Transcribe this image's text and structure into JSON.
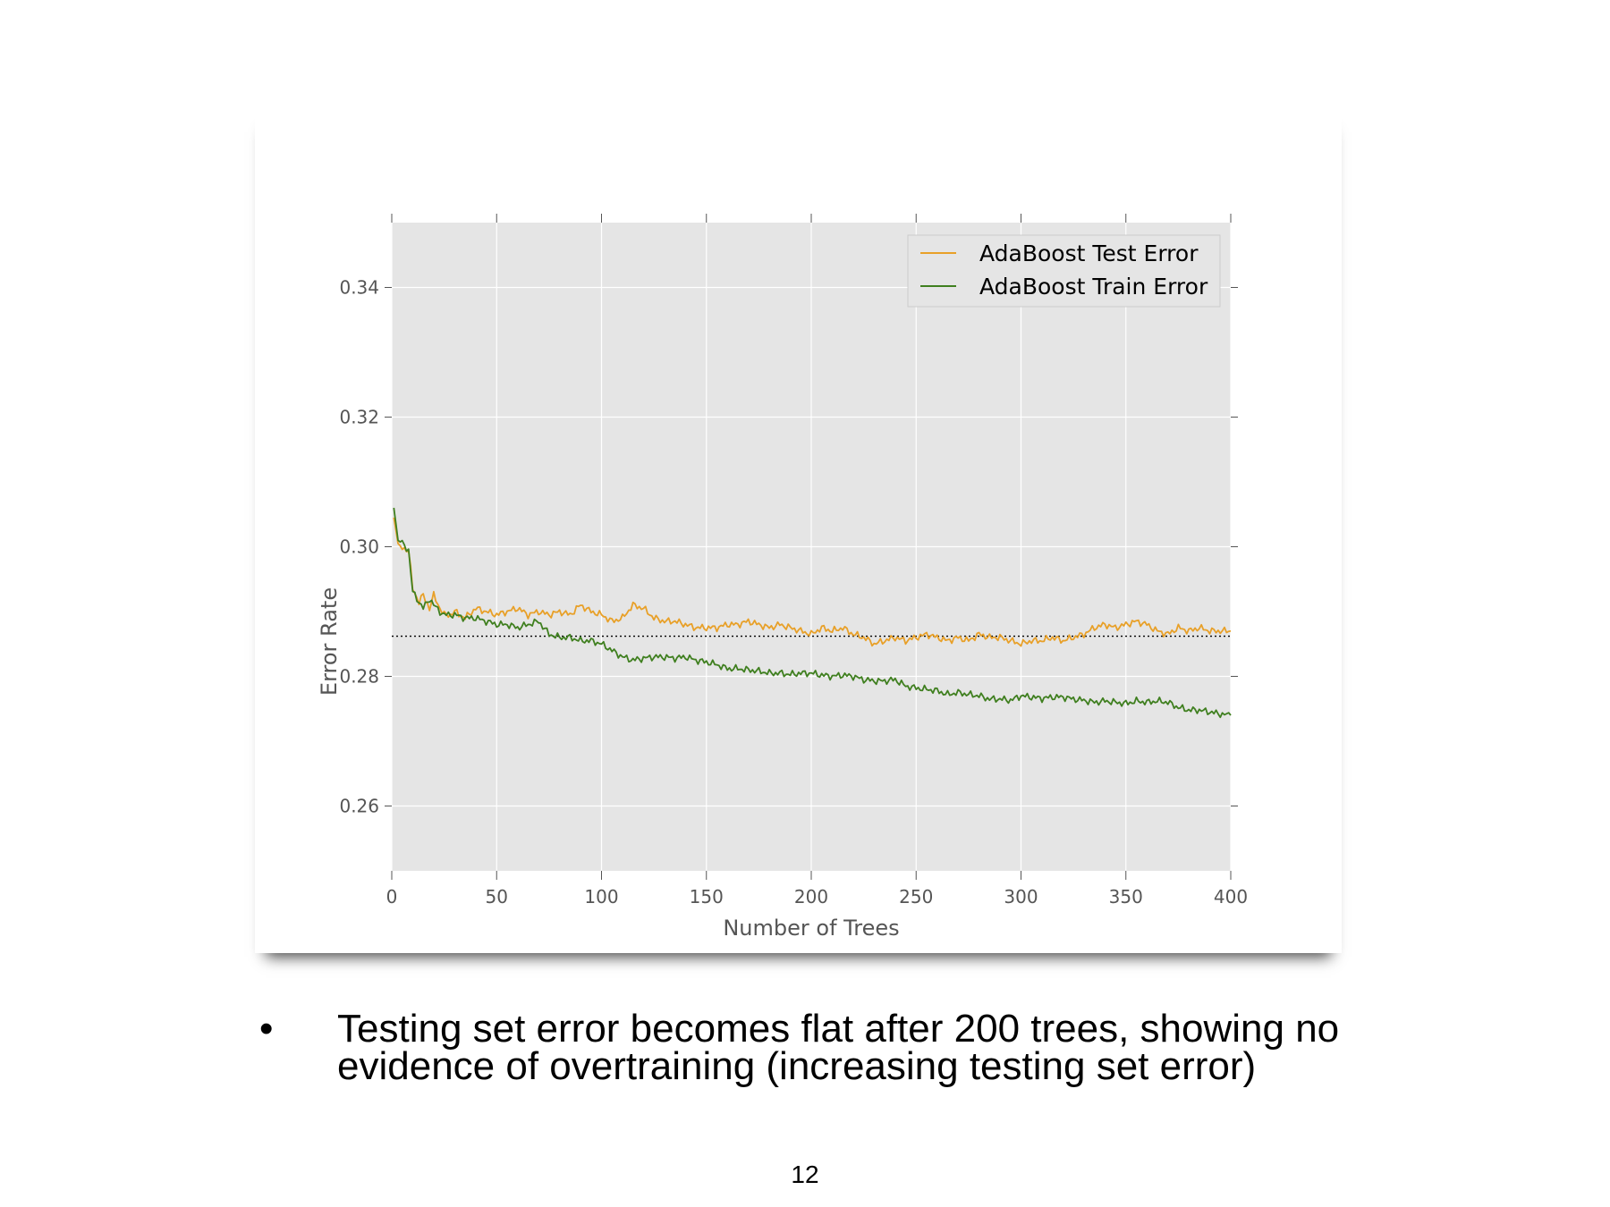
{
  "slide": {
    "bullet_symbol": "•",
    "bullet_text": "Testing set error becomes flat after 200 trees, showing no evidence of overtraining (increasing testing set error)",
    "page_number": "12"
  },
  "chart_data": {
    "type": "line",
    "title": "",
    "xlabel": "Number of Trees",
    "ylabel": "Error Rate",
    "xlim": [
      0,
      400
    ],
    "ylim": [
      0.25,
      0.35
    ],
    "xticks": [
      0,
      50,
      100,
      150,
      200,
      250,
      300,
      350,
      400
    ],
    "yticks": [
      0.26,
      0.28,
      0.3,
      0.32,
      0.34
    ],
    "xtick_labels": [
      "0",
      "50",
      "100",
      "150",
      "200",
      "250",
      "300",
      "350",
      "400"
    ],
    "ytick_labels": [
      "0.26",
      "0.28",
      "0.30",
      "0.32",
      "0.34"
    ],
    "grid": true,
    "background_color": "#e5e5e5",
    "grid_color": "#ffffff",
    "legend_position": "upper right",
    "reference_line": {
      "y": 0.2862,
      "style": "dotted",
      "color": "#000000"
    },
    "series": [
      {
        "name": "AdaBoost Test Error",
        "color": "#e8a028",
        "x": [
          1,
          3,
          5,
          8,
          10,
          13,
          15,
          18,
          20,
          23,
          25,
          28,
          30,
          35,
          40,
          45,
          50,
          55,
          60,
          65,
          70,
          75,
          80,
          85,
          90,
          95,
          100,
          105,
          110,
          115,
          120,
          125,
          130,
          135,
          140,
          145,
          150,
          155,
          160,
          165,
          170,
          175,
          180,
          185,
          190,
          195,
          200,
          205,
          210,
          215,
          220,
          225,
          230,
          235,
          240,
          245,
          250,
          255,
          260,
          265,
          270,
          275,
          280,
          285,
          290,
          295,
          300,
          305,
          310,
          315,
          320,
          325,
          330,
          335,
          340,
          345,
          350,
          355,
          360,
          365,
          370,
          375,
          380,
          385,
          390,
          395,
          400
        ],
        "y": [
          0.3045,
          0.3005,
          0.2998,
          0.2995,
          0.2935,
          0.2915,
          0.2925,
          0.2905,
          0.2925,
          0.2905,
          0.2895,
          0.2895,
          0.29,
          0.289,
          0.2905,
          0.29,
          0.2895,
          0.29,
          0.2905,
          0.2895,
          0.29,
          0.2895,
          0.29,
          0.2895,
          0.291,
          0.29,
          0.2895,
          0.2885,
          0.289,
          0.291,
          0.2905,
          0.289,
          0.2885,
          0.2885,
          0.288,
          0.2875,
          0.2875,
          0.2875,
          0.288,
          0.288,
          0.2885,
          0.288,
          0.2875,
          0.288,
          0.2875,
          0.287,
          0.2865,
          0.2875,
          0.287,
          0.2875,
          0.2865,
          0.286,
          0.285,
          0.2855,
          0.286,
          0.2855,
          0.286,
          0.2865,
          0.286,
          0.2855,
          0.286,
          0.2855,
          0.2865,
          0.286,
          0.286,
          0.2855,
          0.285,
          0.2855,
          0.2855,
          0.286,
          0.2855,
          0.286,
          0.2865,
          0.2875,
          0.288,
          0.2875,
          0.288,
          0.2885,
          0.288,
          0.287,
          0.2865,
          0.2875,
          0.287,
          0.2875,
          0.287,
          0.287,
          0.287
        ]
      },
      {
        "name": "AdaBoost Train Error",
        "color": "#3f7f1f",
        "x": [
          1,
          3,
          5,
          8,
          10,
          13,
          15,
          18,
          20,
          23,
          25,
          28,
          30,
          35,
          40,
          45,
          50,
          55,
          60,
          65,
          70,
          75,
          80,
          85,
          90,
          95,
          100,
          105,
          110,
          115,
          120,
          125,
          130,
          135,
          140,
          145,
          150,
          155,
          160,
          165,
          170,
          175,
          180,
          185,
          190,
          195,
          200,
          205,
          210,
          215,
          220,
          225,
          230,
          235,
          240,
          245,
          250,
          255,
          260,
          265,
          270,
          275,
          280,
          285,
          290,
          295,
          300,
          305,
          310,
          315,
          320,
          325,
          330,
          335,
          340,
          345,
          350,
          355,
          360,
          365,
          370,
          375,
          380,
          385,
          390,
          395,
          400
        ],
        "y": [
          0.306,
          0.301,
          0.3005,
          0.2995,
          0.293,
          0.2915,
          0.2905,
          0.292,
          0.291,
          0.29,
          0.2895,
          0.2895,
          0.2895,
          0.289,
          0.289,
          0.2885,
          0.288,
          0.288,
          0.2875,
          0.288,
          0.2885,
          0.2865,
          0.286,
          0.286,
          0.2855,
          0.2855,
          0.285,
          0.284,
          0.283,
          0.2825,
          0.2828,
          0.283,
          0.283,
          0.2828,
          0.283,
          0.2825,
          0.2822,
          0.2818,
          0.2812,
          0.2812,
          0.281,
          0.2808,
          0.2805,
          0.2805,
          0.2803,
          0.2805,
          0.2805,
          0.2802,
          0.28,
          0.2802,
          0.28,
          0.2795,
          0.2793,
          0.2793,
          0.2795,
          0.2785,
          0.2782,
          0.278,
          0.2778,
          0.2772,
          0.2775,
          0.2772,
          0.277,
          0.2765,
          0.2765,
          0.2763,
          0.277,
          0.2768,
          0.2766,
          0.2768,
          0.2768,
          0.2765,
          0.2763,
          0.276,
          0.2762,
          0.276,
          0.2758,
          0.2762,
          0.276,
          0.2762,
          0.276,
          0.2752,
          0.2748,
          0.2748,
          0.2745,
          0.2742,
          0.274
        ]
      }
    ]
  }
}
